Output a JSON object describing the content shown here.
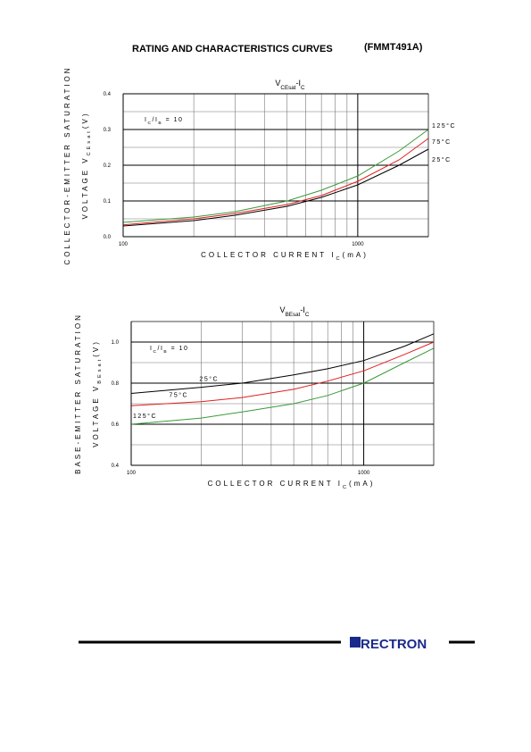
{
  "header": {
    "title": "RATING AND CHARACTERISTICS CURVES",
    "part": "(FMMT491A)"
  },
  "footer": {
    "logo": "RECTRON"
  },
  "chart_data": [
    {
      "type": "line",
      "title_parts": [
        "V",
        "CEsat",
        "-I",
        "C"
      ],
      "ylabel_line1": "COLLECTOR-EMITTER SATURATION",
      "ylabel_parts": [
        "VOLTAGE V",
        "CEsat",
        "(V)"
      ],
      "xlabel_parts": [
        "COLLECTOR CURRENT I",
        "C",
        "(mA)"
      ],
      "annotation_parts": [
        "I",
        "C",
        "/I",
        "B",
        " = 10"
      ],
      "log_x": true,
      "grid": true,
      "xlim": [
        100,
        2000
      ],
      "xticks": [
        100,
        1000
      ],
      "minor_xticks": [
        200,
        300,
        400,
        500,
        600,
        700,
        800,
        900,
        2000
      ],
      "ylim": [
        0,
        0.4
      ],
      "yticks": [
        {
          "value": 0,
          "label": "0.0"
        },
        {
          "value": 0.1,
          "label": "0.1"
        },
        {
          "value": 0.2,
          "label": "0.2"
        },
        {
          "value": 0.3,
          "label": "0.3"
        },
        {
          "value": 0.4,
          "label": "0.4"
        }
      ],
      "minor_yticks": [
        0.05,
        0.15,
        0.25,
        0.35
      ],
      "x": [
        100,
        200,
        300,
        500,
        700,
        1000,
        1500,
        2000
      ],
      "series": [
        {
          "name": "125°C",
          "color": "#3a9a3a",
          "values": [
            0.04,
            0.055,
            0.07,
            0.1,
            0.13,
            0.17,
            0.24,
            0.3
          ]
        },
        {
          "name": "75°C",
          "color": "#e02020",
          "values": [
            0.033,
            0.05,
            0.065,
            0.09,
            0.115,
            0.155,
            0.215,
            0.275
          ]
        },
        {
          "name": "25°C",
          "color": "#000000",
          "values": [
            0.03,
            0.045,
            0.06,
            0.085,
            0.11,
            0.145,
            0.2,
            0.245
          ]
        }
      ]
    },
    {
      "type": "line",
      "title_parts": [
        "V",
        "BEsat",
        "-I",
        "C"
      ],
      "ylabel_line1": "BASE-EMITTER SATURATION",
      "ylabel_parts": [
        "VOLTAGE V",
        "BEsat",
        "(V)"
      ],
      "xlabel_parts": [
        "COLLECTOR CURRENT I",
        "C",
        "(mA)"
      ],
      "annotation_parts": [
        "I",
        "C",
        "/I",
        "B",
        " = 10"
      ],
      "log_x": true,
      "grid": true,
      "xlim": [
        100,
        2000
      ],
      "xticks": [
        100,
        1000
      ],
      "minor_xticks": [
        200,
        300,
        400,
        500,
        600,
        700,
        800,
        900,
        2000
      ],
      "ylim": [
        0.4,
        1.1
      ],
      "yticks": [
        0.4,
        0.6,
        0.8,
        {
          "value": 1,
          "label": "1.0"
        }
      ],
      "minor_yticks": [
        0.5,
        0.7,
        0.9,
        1.1
      ],
      "x": [
        100,
        200,
        300,
        500,
        700,
        1000,
        1500,
        2000
      ],
      "series": [
        {
          "name": "25°C",
          "color": "#000000",
          "values": [
            0.75,
            0.78,
            0.8,
            0.84,
            0.87,
            0.91,
            0.98,
            1.04
          ]
        },
        {
          "name": "75°C",
          "color": "#e02020",
          "values": [
            0.69,
            0.71,
            0.73,
            0.77,
            0.81,
            0.86,
            0.94,
            1.0
          ]
        },
        {
          "name": "125°C",
          "color": "#3a9a3a",
          "values": [
            0.6,
            0.63,
            0.66,
            0.7,
            0.74,
            0.8,
            0.9,
            0.97
          ]
        }
      ]
    }
  ]
}
